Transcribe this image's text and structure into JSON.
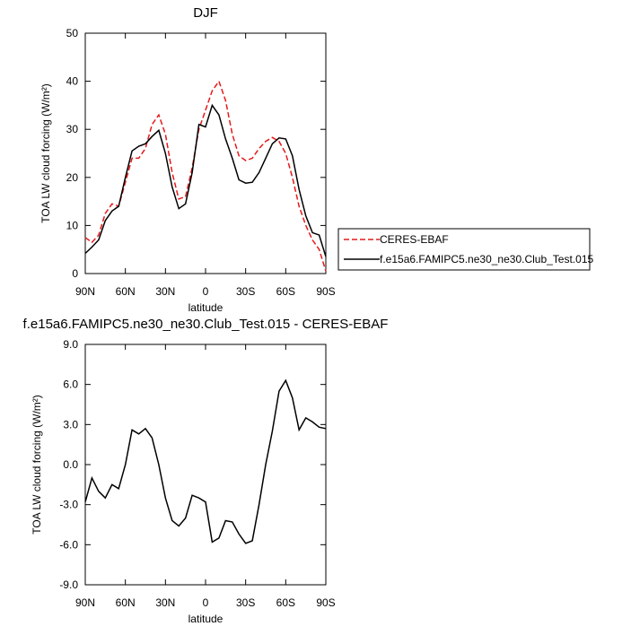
{
  "chart_data": [
    {
      "type": "line",
      "title": "DJF",
      "xlabel": "latitude",
      "ylabel": "TOA LW cloud forcing (W/m²)",
      "x": [
        90,
        85,
        80,
        75,
        70,
        65,
        60,
        55,
        50,
        45,
        40,
        35,
        30,
        25,
        20,
        15,
        10,
        5,
        0,
        -5,
        -10,
        -15,
        -20,
        -25,
        -30,
        -35,
        -40,
        -45,
        -50,
        -55,
        -60,
        -65,
        -70,
        -75,
        -80,
        -85,
        -90
      ],
      "series": [
        {
          "name": "CERES-EBAF",
          "color": "#e41a1c",
          "dashed": true,
          "values": [
            7.5,
            6.5,
            8,
            12.5,
            14.5,
            14,
            19,
            24,
            24,
            26,
            31,
            33,
            29,
            21,
            15.5,
            16,
            22,
            30,
            34,
            38,
            40,
            36,
            29,
            24.5,
            23.5,
            24,
            26,
            27.5,
            28.3,
            27.5,
            25,
            20,
            14,
            10,
            7,
            5,
            0.5
          ]
        },
        {
          "name": "f.e15a6.FAMIPC5.ne30_ne30.Club_Test.015",
          "color": "#000000",
          "dashed": false,
          "values": [
            4.2,
            5.5,
            7,
            11,
            13,
            14,
            20,
            25.5,
            26.5,
            27,
            28.5,
            29.8,
            25,
            18,
            13.5,
            14.5,
            21,
            31,
            30.5,
            35,
            33,
            28,
            24,
            19.5,
            18.8,
            19,
            21,
            24,
            27,
            28.2,
            28,
            24.5,
            17.5,
            12,
            8.5,
            8,
            3.5
          ]
        }
      ],
      "xlim": [
        90,
        -90
      ],
      "xticks": [
        {
          "value": 90,
          "label": "90N"
        },
        {
          "value": 60,
          "label": "60N"
        },
        {
          "value": 30,
          "label": "30N"
        },
        0,
        {
          "value": -30,
          "label": "30S"
        },
        {
          "value": -60,
          "label": "60S"
        },
        {
          "value": -90,
          "label": "90S"
        }
      ],
      "ylim": [
        0,
        50
      ],
      "yticks": [
        0,
        10,
        20,
        30,
        40,
        50
      ],
      "legend": "right"
    },
    {
      "type": "line",
      "title": "f.e15a6.FAMIPC5.ne30_ne30.Club_Test.015 - CERES-EBAF",
      "xlabel": "latitude",
      "ylabel": "TOA LW cloud forcing (W/m²)",
      "x": [
        90,
        85,
        80,
        75,
        70,
        65,
        60,
        55,
        50,
        45,
        40,
        35,
        30,
        25,
        20,
        15,
        10,
        5,
        0,
        -5,
        -10,
        -15,
        -20,
        -25,
        -30,
        -35,
        -40,
        -45,
        -50,
        -55,
        -60,
        -65,
        -70,
        -75,
        -80,
        -85,
        -90
      ],
      "series": [
        {
          "color": "#000000",
          "dashed": false,
          "values": [
            -2.8,
            -1,
            -2,
            -2.5,
            -1.5,
            -1.8,
            0,
            2.6,
            2.3,
            2.7,
            2,
            0,
            -2.5,
            -4.2,
            -4.6,
            -4,
            -2.3,
            -2.5,
            -2.8,
            -5.8,
            -5.5,
            -4.2,
            -4.3,
            -5.2,
            -5.9,
            -5.7,
            -3,
            0,
            2.5,
            5.5,
            6.3,
            5,
            2.6,
            3.5,
            3.2,
            2.8,
            2.7
          ]
        }
      ],
      "xlim": [
        90,
        -90
      ],
      "xticks": [
        {
          "value": 90,
          "label": "90N"
        },
        {
          "value": 60,
          "label": "60N"
        },
        {
          "value": 30,
          "label": "30N"
        },
        0,
        {
          "value": -30,
          "label": "30S"
        },
        {
          "value": -60,
          "label": "60S"
        },
        {
          "value": -90,
          "label": "90S"
        }
      ],
      "ylim": [
        -9,
        9
      ],
      "yticks": [
        {
          "value": -9,
          "label": "-9.0"
        },
        {
          "value": -6,
          "label": "-6.0"
        },
        {
          "value": -3,
          "label": "-3.0"
        },
        {
          "value": 0,
          "label": "0.0"
        },
        {
          "value": 3,
          "label": "3.0"
        },
        {
          "value": 6,
          "label": "6.0"
        },
        {
          "value": 9,
          "label": "9.0"
        }
      ]
    }
  ]
}
